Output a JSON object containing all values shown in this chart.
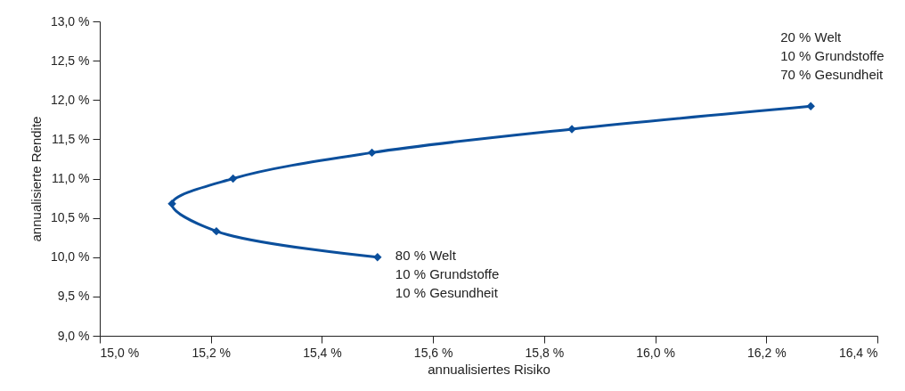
{
  "chart_data": {
    "type": "line",
    "xlabel": "annualisiertes Risiko",
    "ylabel": "annualisierte Rendite",
    "x": [
      15.5,
      15.21,
      15.13,
      15.24,
      15.49,
      15.85,
      16.28
    ],
    "series": [
      {
        "color": "#0b4f9c",
        "values": [
          10.0,
          10.33,
          10.68,
          11.0,
          11.33,
          11.63,
          11.92
        ]
      }
    ],
    "xlim": [
      15.0,
      16.4
    ],
    "xticks": [
      {
        "value": 15.0,
        "label": "15,0 %"
      },
      {
        "value": 15.2,
        "label": "15,2 %"
      },
      {
        "value": 15.4,
        "label": "15,4 %"
      },
      {
        "value": 15.6,
        "label": "15,6 %"
      },
      {
        "value": 15.8,
        "label": "15,8 %"
      },
      {
        "value": 16.0,
        "label": "16,0 %"
      },
      {
        "value": 16.2,
        "label": "16,2 %"
      },
      {
        "value": 16.4,
        "label": "16,4 %"
      }
    ],
    "ylim": [
      9.0,
      13.0
    ],
    "yticks": [
      {
        "value": 9.0,
        "label": "9,0 %"
      },
      {
        "value": 9.5,
        "label": "9,5 %"
      },
      {
        "value": 10.0,
        "label": "10,0 %"
      },
      {
        "value": 10.5,
        "label": "10,5 %"
      },
      {
        "value": 11.0,
        "label": "11,0 %"
      },
      {
        "value": 11.5,
        "label": "11,5 %"
      },
      {
        "value": 12.0,
        "label": "12,0 %"
      },
      {
        "value": 12.5,
        "label": "12,5 %"
      },
      {
        "value": 13.0,
        "label": "13,0 %"
      }
    ],
    "annotations": [
      {
        "text": "80 % Welt\n10 % Grundstoffe\n10 % Gesundheit",
        "x": 15.5,
        "y": 10.0
      },
      {
        "text": "20 % Welt\n10 % Grundstoffe\n70 % Gesundheit",
        "x": 16.28,
        "y": 11.92
      }
    ],
    "marker": "diamond",
    "line_style": "solid"
  }
}
